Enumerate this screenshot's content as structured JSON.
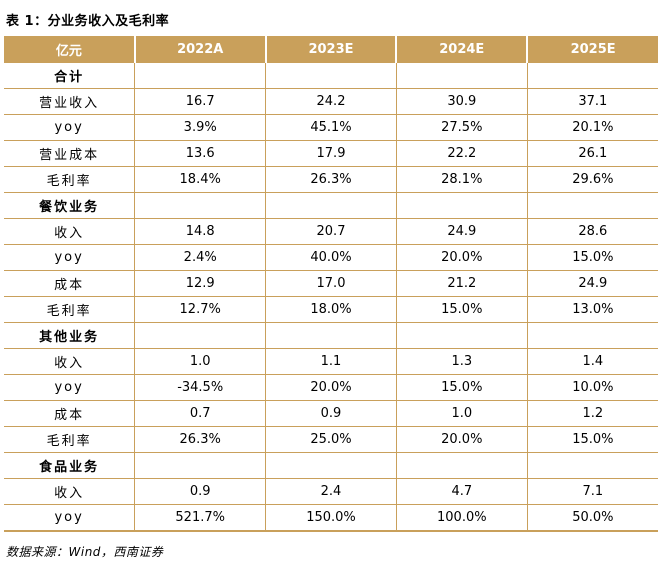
{
  "title": "表 1：分业务收入及毛利率",
  "header": [
    "亿元",
    "2022A",
    "2023E",
    "2024E",
    "2025E"
  ],
  "rows": [
    {
      "label": "合计",
      "section": true,
      "values": [
        "",
        "",
        "",
        ""
      ]
    },
    {
      "label": "营业收入",
      "values": [
        "16.7",
        "24.2",
        "30.9",
        "37.1"
      ]
    },
    {
      "label": "yoy",
      "values": [
        "3.9%",
        "45.1%",
        "27.5%",
        "20.1%"
      ]
    },
    {
      "label": "营业成本",
      "values": [
        "13.6",
        "17.9",
        "22.2",
        "26.1"
      ]
    },
    {
      "label": "毛利率",
      "values": [
        "18.4%",
        "26.3%",
        "28.1%",
        "29.6%"
      ]
    },
    {
      "label": "餐饮业务",
      "section": true,
      "values": [
        "",
        "",
        "",
        ""
      ]
    },
    {
      "label": "收入",
      "values": [
        "14.8",
        "20.7",
        "24.9",
        "28.6"
      ]
    },
    {
      "label": "yoy",
      "values": [
        "2.4%",
        "40.0%",
        "20.0%",
        "15.0%"
      ]
    },
    {
      "label": "成本",
      "values": [
        "12.9",
        "17.0",
        "21.2",
        "24.9"
      ]
    },
    {
      "label": "毛利率",
      "values": [
        "12.7%",
        "18.0%",
        "15.0%",
        "13.0%"
      ]
    },
    {
      "label": "其他业务",
      "section": true,
      "values": [
        "",
        "",
        "",
        ""
      ]
    },
    {
      "label": "收入",
      "values": [
        "1.0",
        "1.1",
        "1.3",
        "1.4"
      ]
    },
    {
      "label": "yoy",
      "values": [
        "-34.5%",
        "20.0%",
        "15.0%",
        "10.0%"
      ]
    },
    {
      "label": "成本",
      "values": [
        "0.7",
        "0.9",
        "1.0",
        "1.2"
      ]
    },
    {
      "label": "毛利率",
      "values": [
        "26.3%",
        "25.0%",
        "20.0%",
        "15.0%"
      ]
    },
    {
      "label": "食品业务",
      "section": true,
      "values": [
        "",
        "",
        "",
        ""
      ]
    },
    {
      "label": "收入",
      "values": [
        "0.9",
        "2.4",
        "4.7",
        "7.1"
      ]
    },
    {
      "label": "yoy",
      "values": [
        "521.7%",
        "150.0%",
        "100.0%",
        "50.0%"
      ]
    }
  ],
  "source": "数据来源：Wind，西南证券",
  "colors": {
    "accent": "#c9a05b",
    "header_text": "#ffffff"
  }
}
